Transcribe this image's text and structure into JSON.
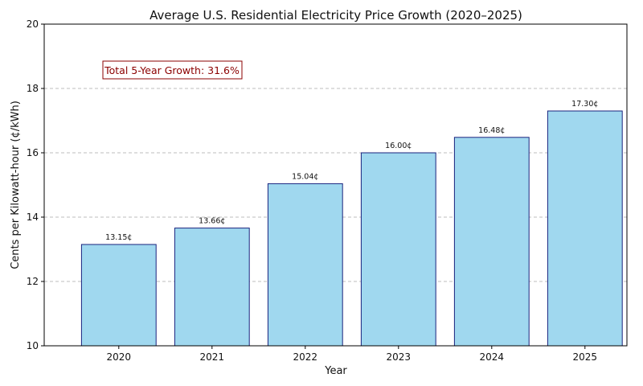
{
  "chart_data": {
    "type": "bar",
    "title": "Average U.S. Residential Electricity Price Growth (2020–2025)",
    "xlabel": "Year",
    "ylabel": "Cents per Kilowatt-hour (¢/kWh)",
    "categories": [
      "2020",
      "2021",
      "2022",
      "2023",
      "2024",
      "2025"
    ],
    "values": [
      13.15,
      13.66,
      15.04,
      16.0,
      16.48,
      17.3
    ],
    "data_labels": [
      "13.15¢",
      "13.66¢",
      "15.04¢",
      "16.00¢",
      "16.48¢",
      "17.30¢"
    ],
    "ylim": [
      10,
      20
    ],
    "yticks": [
      10,
      12,
      14,
      16,
      18,
      20
    ],
    "grid": "y-dashed",
    "annotation": "Total 5-Year Growth: 31.6%",
    "colors": {
      "bar_fill": "#a0d8ef",
      "bar_edge": "#1a237e",
      "annotation_text": "#8b0000",
      "annotation_border": "#8b0000",
      "grid": "#bdbdbd",
      "axis": "#000000"
    }
  }
}
